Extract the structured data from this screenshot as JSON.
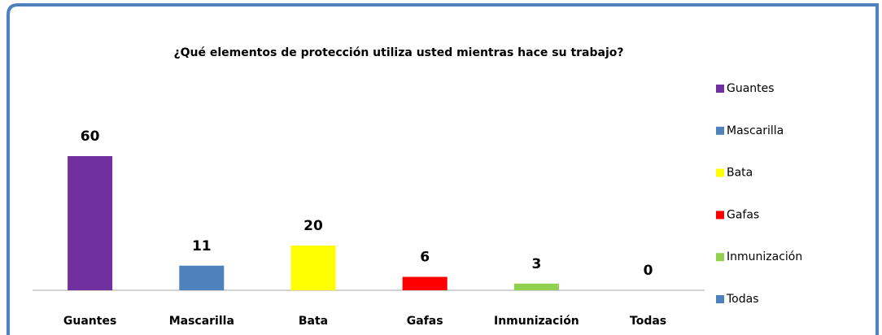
{
  "chart_data": {
    "type": "bar",
    "title": "¿Qué elementos de protección utiliza usted mientras hace su trabajo?",
    "categories": [
      "Guantes",
      "Mascarilla",
      "Bata",
      "Gafas",
      "Inmunización",
      "Todas"
    ],
    "values": [
      60,
      11,
      20,
      6,
      3,
      0
    ],
    "colors": [
      "#7030a0",
      "#4f81bd",
      "#ffff00",
      "#ff0000",
      "#92d050",
      "#4f81bd"
    ],
    "legend": "right"
  }
}
